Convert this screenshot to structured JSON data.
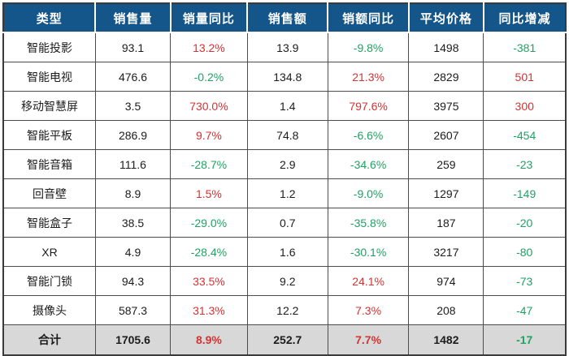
{
  "table": {
    "columns": [
      {
        "label": "类型"
      },
      {
        "label": "销售量"
      },
      {
        "label": "销量同比"
      },
      {
        "label": "销售额"
      },
      {
        "label": "销额同比"
      },
      {
        "label": "平均价格"
      },
      {
        "label": "同比增减"
      }
    ],
    "rows": [
      {
        "cells": [
          "智能投影",
          "93.1",
          "13.2%",
          "13.9",
          "-9.8%",
          "1498",
          "-381"
        ]
      },
      {
        "cells": [
          "智能电视",
          "476.6",
          "-0.2%",
          "134.8",
          "21.3%",
          "2829",
          "501"
        ]
      },
      {
        "cells": [
          "移动智慧屏",
          "3.5",
          "730.0%",
          "1.4",
          "797.6%",
          "3975",
          "300"
        ]
      },
      {
        "cells": [
          "智能平板",
          "286.9",
          "9.7%",
          "74.8",
          "-6.6%",
          "2607",
          "-454"
        ]
      },
      {
        "cells": [
          "智能音箱",
          "111.6",
          "-28.7%",
          "2.9",
          "-34.6%",
          "259",
          "-23"
        ]
      },
      {
        "cells": [
          "回音壁",
          "8.9",
          "1.5%",
          "1.2",
          "-9.0%",
          "1297",
          "-149"
        ]
      },
      {
        "cells": [
          "智能盒子",
          "38.5",
          "-29.0%",
          "0.7",
          "-35.8%",
          "187",
          "-20"
        ]
      },
      {
        "cells": [
          "XR",
          "4.9",
          "-28.4%",
          "1.6",
          "-30.1%",
          "3217",
          "-80"
        ]
      },
      {
        "cells": [
          "智能门锁",
          "94.3",
          "33.5%",
          "9.2",
          "24.1%",
          "974",
          "-73"
        ]
      },
      {
        "cells": [
          "摄像头",
          "587.3",
          "31.3%",
          "12.2",
          "7.3%",
          "208",
          "-47"
        ]
      }
    ],
    "total": {
      "cells": [
        "合计",
        "1705.6",
        "8.9%",
        "252.7",
        "7.7%",
        "1482",
        "-17"
      ]
    },
    "colors": {
      "positive": "#d23434",
      "negative": "#1fa263",
      "header_bg": "#15568a",
      "total_bg": "#d8d8d8"
    }
  }
}
